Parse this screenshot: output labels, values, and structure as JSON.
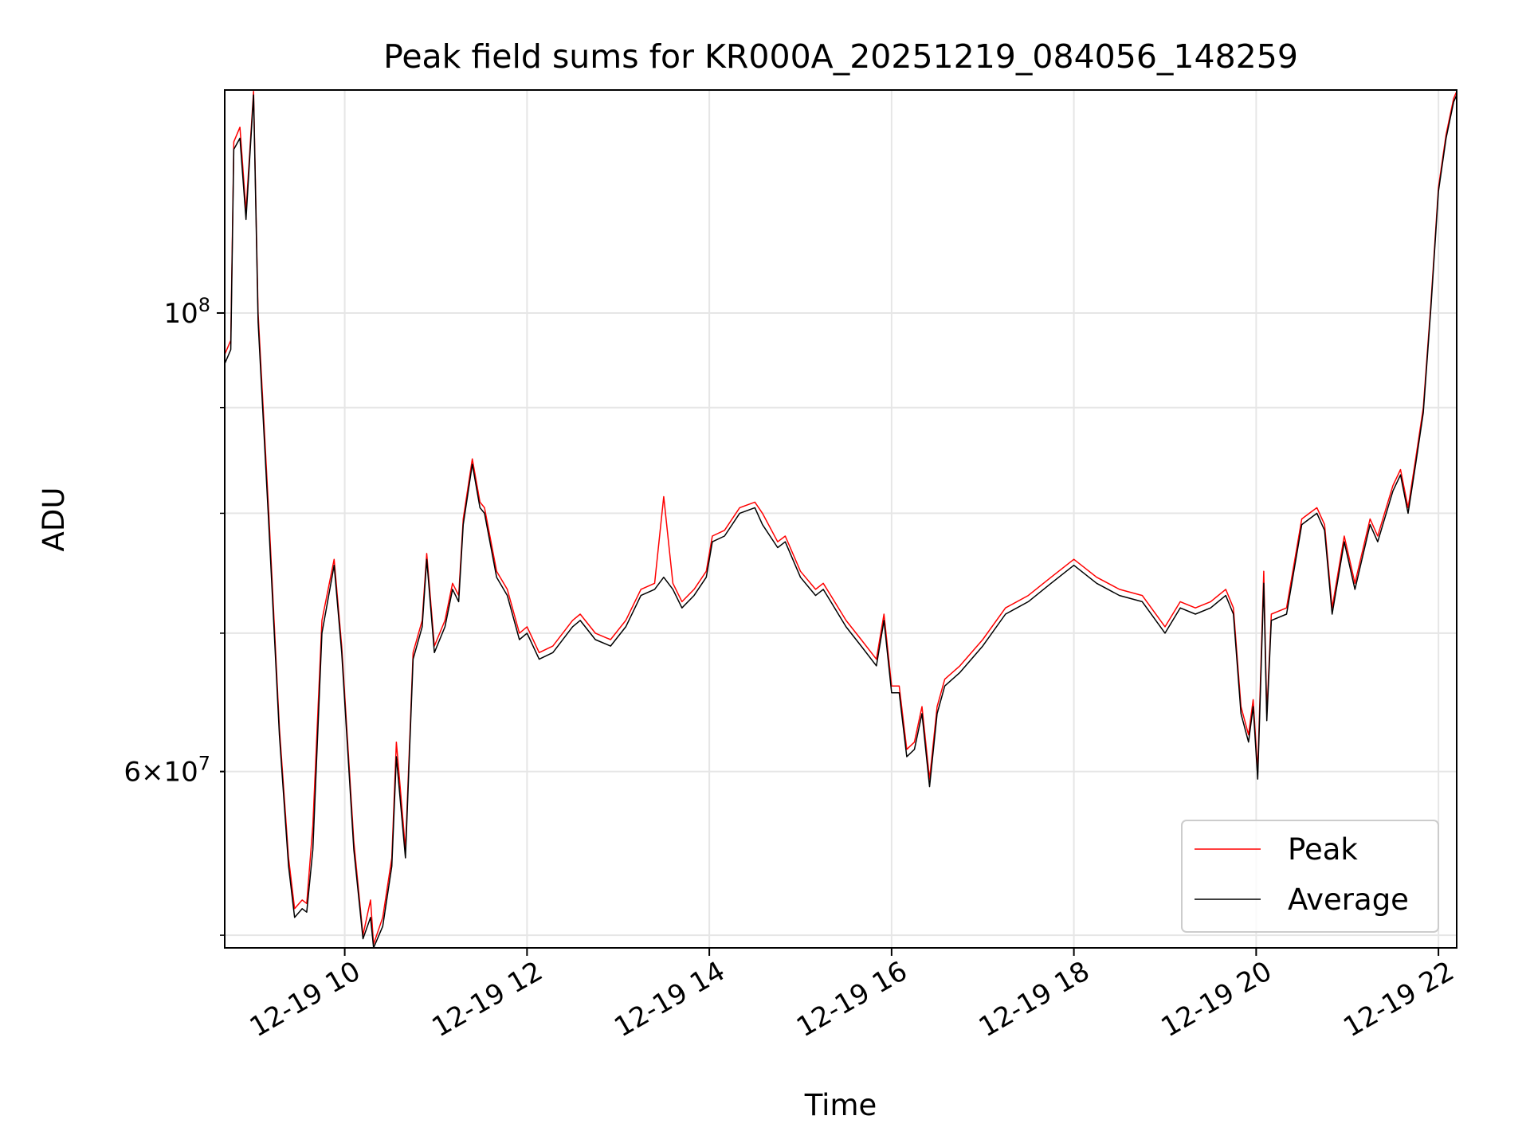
{
  "chart_data": {
    "type": "line",
    "title": "Peak field sums for KR000A_20251219_084056_148259",
    "xlabel": "Time",
    "ylabel": "ADU",
    "y_scale": "log",
    "grid": true,
    "legend_position": "lower-right",
    "x_tick_labels": [
      "12-19 10",
      "12-19 12",
      "12-19 14",
      "12-19 16",
      "12-19 18",
      "12-19 20",
      "12-19 22"
    ],
    "x_ticks": [
      "2025-12-19T10:00",
      "2025-12-19T12:00",
      "2025-12-19T14:00",
      "2025-12-19T16:00",
      "2025-12-19T18:00",
      "2025-12-19T20:00",
      "2025-12-19T22:00"
    ],
    "y_major_ticks": [
      {
        "value": 100000000,
        "mantissa": "",
        "base": "10",
        "exp": "8"
      }
    ],
    "y_minor_ticks": [
      {
        "value": 60000000,
        "mantissa": "6×",
        "base": "10",
        "exp": "7"
      }
    ],
    "y_minor_gridlines": [
      50000000,
      60000000,
      70000000,
      80000000,
      90000000
    ],
    "xlim": [
      "2025-12-19T08:41",
      "2025-12-19T22:12"
    ],
    "ylim": [
      49300000,
      128200000
    ],
    "colors": {
      "peak": "#ff0000",
      "average": "#000000",
      "grid": "#e6e6e6",
      "legend_border": "#cccccc"
    },
    "series": [
      {
        "name": "Peak",
        "color": "#ff0000",
        "x": [
          "2025-12-19T08:41",
          "2025-12-19T08:45",
          "2025-12-19T08:47",
          "2025-12-19T08:51",
          "2025-12-19T08:55",
          "2025-12-19T09:00",
          "2025-12-19T09:03",
          "2025-12-19T09:10",
          "2025-12-19T09:17",
          "2025-12-19T09:23",
          "2025-12-19T09:27",
          "2025-12-19T09:32",
          "2025-12-19T09:35",
          "2025-12-19T09:39",
          "2025-12-19T09:45",
          "2025-12-19T09:53",
          "2025-12-19T09:58",
          "2025-12-19T10:06",
          "2025-12-19T10:12",
          "2025-12-19T10:17",
          "2025-12-19T10:19",
          "2025-12-19T10:25",
          "2025-12-19T10:31",
          "2025-12-19T10:34",
          "2025-12-19T10:40",
          "2025-12-19T10:45",
          "2025-12-19T10:51",
          "2025-12-19T10:54",
          "2025-12-19T10:59",
          "2025-12-19T11:06",
          "2025-12-19T11:11",
          "2025-12-19T11:15",
          "2025-12-19T11:18",
          "2025-12-19T11:24",
          "2025-12-19T11:29",
          "2025-12-19T11:32",
          "2025-12-19T11:40",
          "2025-12-19T11:47",
          "2025-12-19T11:55",
          "2025-12-19T12:00",
          "2025-12-19T12:08",
          "2025-12-19T12:17",
          "2025-12-19T12:30",
          "2025-12-19T12:35",
          "2025-12-19T12:45",
          "2025-12-19T12:55",
          "2025-12-19T13:05",
          "2025-12-19T13:15",
          "2025-12-19T13:24",
          "2025-12-19T13:30",
          "2025-12-19T13:36",
          "2025-12-19T13:42",
          "2025-12-19T13:50",
          "2025-12-19T13:58",
          "2025-12-19T14:02",
          "2025-12-19T14:10",
          "2025-12-19T14:20",
          "2025-12-19T14:30",
          "2025-12-19T14:35",
          "2025-12-19T14:45",
          "2025-12-19T14:50",
          "2025-12-19T15:00",
          "2025-12-19T15:10",
          "2025-12-19T15:15",
          "2025-12-19T15:20",
          "2025-12-19T15:30",
          "2025-12-19T15:40",
          "2025-12-19T15:50",
          "2025-12-19T15:55",
          "2025-12-19T16:00",
          "2025-12-19T16:05",
          "2025-12-19T16:10",
          "2025-12-19T16:15",
          "2025-12-19T16:20",
          "2025-12-19T16:25",
          "2025-12-19T16:30",
          "2025-12-19T16:35",
          "2025-12-19T16:45",
          "2025-12-19T17:00",
          "2025-12-19T17:15",
          "2025-12-19T17:30",
          "2025-12-19T17:45",
          "2025-12-19T18:00",
          "2025-12-19T18:15",
          "2025-12-19T18:30",
          "2025-12-19T18:45",
          "2025-12-19T19:00",
          "2025-12-19T19:10",
          "2025-12-19T19:20",
          "2025-12-19T19:30",
          "2025-12-19T19:40",
          "2025-12-19T19:45",
          "2025-12-19T19:50",
          "2025-12-19T19:55",
          "2025-12-19T19:58",
          "2025-12-19T20:01",
          "2025-12-19T20:05",
          "2025-12-19T20:07",
          "2025-12-19T20:10",
          "2025-12-19T20:20",
          "2025-12-19T20:30",
          "2025-12-19T20:35",
          "2025-12-19T20:40",
          "2025-12-19T20:45",
          "2025-12-19T20:50",
          "2025-12-19T20:58",
          "2025-12-19T21:05",
          "2025-12-19T21:15",
          "2025-12-19T21:20",
          "2025-12-19T21:30",
          "2025-12-19T21:35",
          "2025-12-19T21:40",
          "2025-12-19T21:45",
          "2025-12-19T21:50",
          "2025-12-19T21:55",
          "2025-12-19T22:00",
          "2025-12-19T22:05",
          "2025-12-19T22:10",
          "2025-12-19T22:12"
        ],
        "values": [
          95500000,
          97000000,
          121000000,
          123000000,
          112000000,
          128000000,
          100000000,
          80000000,
          63000000,
          54500000,
          51500000,
          52000000,
          51800000,
          56500000,
          71000000,
          76000000,
          69000000,
          55500000,
          50000000,
          52000000,
          49500000,
          51000000,
          54500000,
          62000000,
          55000000,
          68500000,
          71000000,
          76500000,
          69000000,
          71000000,
          74000000,
          73000000,
          79500000,
          85000000,
          81000000,
          80500000,
          75000000,
          73500000,
          70000000,
          70500000,
          68500000,
          69000000,
          71000000,
          71500000,
          70000000,
          69500000,
          71000000,
          73500000,
          74000000,
          81500000,
          74000000,
          72500000,
          73500000,
          75000000,
          78000000,
          78500000,
          80500000,
          81000000,
          80000000,
          77500000,
          78000000,
          75000000,
          73500000,
          74000000,
          73000000,
          71000000,
          69500000,
          68000000,
          71500000,
          66000000,
          66000000,
          61500000,
          62000000,
          64500000,
          59500000,
          64500000,
          66500000,
          67500000,
          69500000,
          72000000,
          73000000,
          74500000,
          76000000,
          74500000,
          73500000,
          73000000,
          70500000,
          72500000,
          72000000,
          72500000,
          73500000,
          72000000,
          64500000,
          62500000,
          65000000,
          60000000,
          75000000,
          64000000,
          71500000,
          72000000,
          79500000,
          80000000,
          80500000,
          79000000,
          72000000,
          78000000,
          74000000,
          79500000,
          78000000,
          82500000,
          84000000,
          80500000,
          85000000,
          90000000,
          101000000,
          115000000,
          122000000,
          127000000,
          128000000
        ]
      },
      {
        "name": "Average",
        "color": "#000000",
        "x": [
          "2025-12-19T08:41",
          "2025-12-19T08:45",
          "2025-12-19T08:47",
          "2025-12-19T08:51",
          "2025-12-19T08:55",
          "2025-12-19T09:00",
          "2025-12-19T09:03",
          "2025-12-19T09:10",
          "2025-12-19T09:17",
          "2025-12-19T09:23",
          "2025-12-19T09:27",
          "2025-12-19T09:32",
          "2025-12-19T09:35",
          "2025-12-19T09:39",
          "2025-12-19T09:45",
          "2025-12-19T09:53",
          "2025-12-19T09:58",
          "2025-12-19T10:06",
          "2025-12-19T10:12",
          "2025-12-19T10:17",
          "2025-12-19T10:19",
          "2025-12-19T10:25",
          "2025-12-19T10:31",
          "2025-12-19T10:34",
          "2025-12-19T10:40",
          "2025-12-19T10:45",
          "2025-12-19T10:51",
          "2025-12-19T10:54",
          "2025-12-19T10:59",
          "2025-12-19T11:06",
          "2025-12-19T11:11",
          "2025-12-19T11:15",
          "2025-12-19T11:18",
          "2025-12-19T11:24",
          "2025-12-19T11:29",
          "2025-12-19T11:32",
          "2025-12-19T11:40",
          "2025-12-19T11:47",
          "2025-12-19T11:55",
          "2025-12-19T12:00",
          "2025-12-19T12:08",
          "2025-12-19T12:17",
          "2025-12-19T12:30",
          "2025-12-19T12:35",
          "2025-12-19T12:45",
          "2025-12-19T12:55",
          "2025-12-19T13:05",
          "2025-12-19T13:15",
          "2025-12-19T13:24",
          "2025-12-19T13:30",
          "2025-12-19T13:36",
          "2025-12-19T13:42",
          "2025-12-19T13:50",
          "2025-12-19T13:58",
          "2025-12-19T14:02",
          "2025-12-19T14:10",
          "2025-12-19T14:20",
          "2025-12-19T14:30",
          "2025-12-19T14:35",
          "2025-12-19T14:45",
          "2025-12-19T14:50",
          "2025-12-19T15:00",
          "2025-12-19T15:10",
          "2025-12-19T15:15",
          "2025-12-19T15:20",
          "2025-12-19T15:30",
          "2025-12-19T15:40",
          "2025-12-19T15:50",
          "2025-12-19T15:55",
          "2025-12-19T16:00",
          "2025-12-19T16:05",
          "2025-12-19T16:10",
          "2025-12-19T16:15",
          "2025-12-19T16:20",
          "2025-12-19T16:25",
          "2025-12-19T16:30",
          "2025-12-19T16:35",
          "2025-12-19T16:45",
          "2025-12-19T17:00",
          "2025-12-19T17:15",
          "2025-12-19T17:30",
          "2025-12-19T17:45",
          "2025-12-19T18:00",
          "2025-12-19T18:15",
          "2025-12-19T18:30",
          "2025-12-19T18:45",
          "2025-12-19T19:00",
          "2025-12-19T19:10",
          "2025-12-19T19:20",
          "2025-12-19T19:30",
          "2025-12-19T19:40",
          "2025-12-19T19:45",
          "2025-12-19T19:50",
          "2025-12-19T19:55",
          "2025-12-19T19:58",
          "2025-12-19T20:01",
          "2025-12-19T20:05",
          "2025-12-19T20:07",
          "2025-12-19T20:10",
          "2025-12-19T20:20",
          "2025-12-19T20:30",
          "2025-12-19T20:35",
          "2025-12-19T20:40",
          "2025-12-19T20:45",
          "2025-12-19T20:50",
          "2025-12-19T20:58",
          "2025-12-19T21:05",
          "2025-12-19T21:15",
          "2025-12-19T21:20",
          "2025-12-19T21:30",
          "2025-12-19T21:35",
          "2025-12-19T21:40",
          "2025-12-19T21:45",
          "2025-12-19T21:50",
          "2025-12-19T21:55",
          "2025-12-19T22:00",
          "2025-12-19T22:05",
          "2025-12-19T22:10",
          "2025-12-19T22:12"
        ],
        "values": [
          94500000,
          96000000,
          120000000,
          121500000,
          111000000,
          127500000,
          99000000,
          79000000,
          62500000,
          54000000,
          51000000,
          51500000,
          51300000,
          55000000,
          70000000,
          75500000,
          68500000,
          55000000,
          49800000,
          51000000,
          49300000,
          50500000,
          54000000,
          61000000,
          54500000,
          68000000,
          70500000,
          76000000,
          68500000,
          70500000,
          73500000,
          72500000,
          79000000,
          84500000,
          80500000,
          80000000,
          74500000,
          73000000,
          69500000,
          70000000,
          68000000,
          68500000,
          70500000,
          71000000,
          69500000,
          69000000,
          70500000,
          73000000,
          73500000,
          74500000,
          73500000,
          72000000,
          73000000,
          74500000,
          77500000,
          78000000,
          80000000,
          80500000,
          79000000,
          77000000,
          77500000,
          74500000,
          73000000,
          73500000,
          72500000,
          70500000,
          69000000,
          67500000,
          71000000,
          65500000,
          65500000,
          61000000,
          61500000,
          64000000,
          59000000,
          64000000,
          66000000,
          67000000,
          69000000,
          71500000,
          72500000,
          74000000,
          75500000,
          74000000,
          73000000,
          72500000,
          70000000,
          72000000,
          71500000,
          72000000,
          73000000,
          71500000,
          64000000,
          62000000,
          64500000,
          59500000,
          74000000,
          63500000,
          71000000,
          71500000,
          79000000,
          79500000,
          80000000,
          78500000,
          71500000,
          77500000,
          73500000,
          79000000,
          77500000,
          82000000,
          83500000,
          80000000,
          84500000,
          89500000,
          100500000,
          114500000,
          121500000,
          126500000,
          127500000
        ]
      }
    ]
  }
}
